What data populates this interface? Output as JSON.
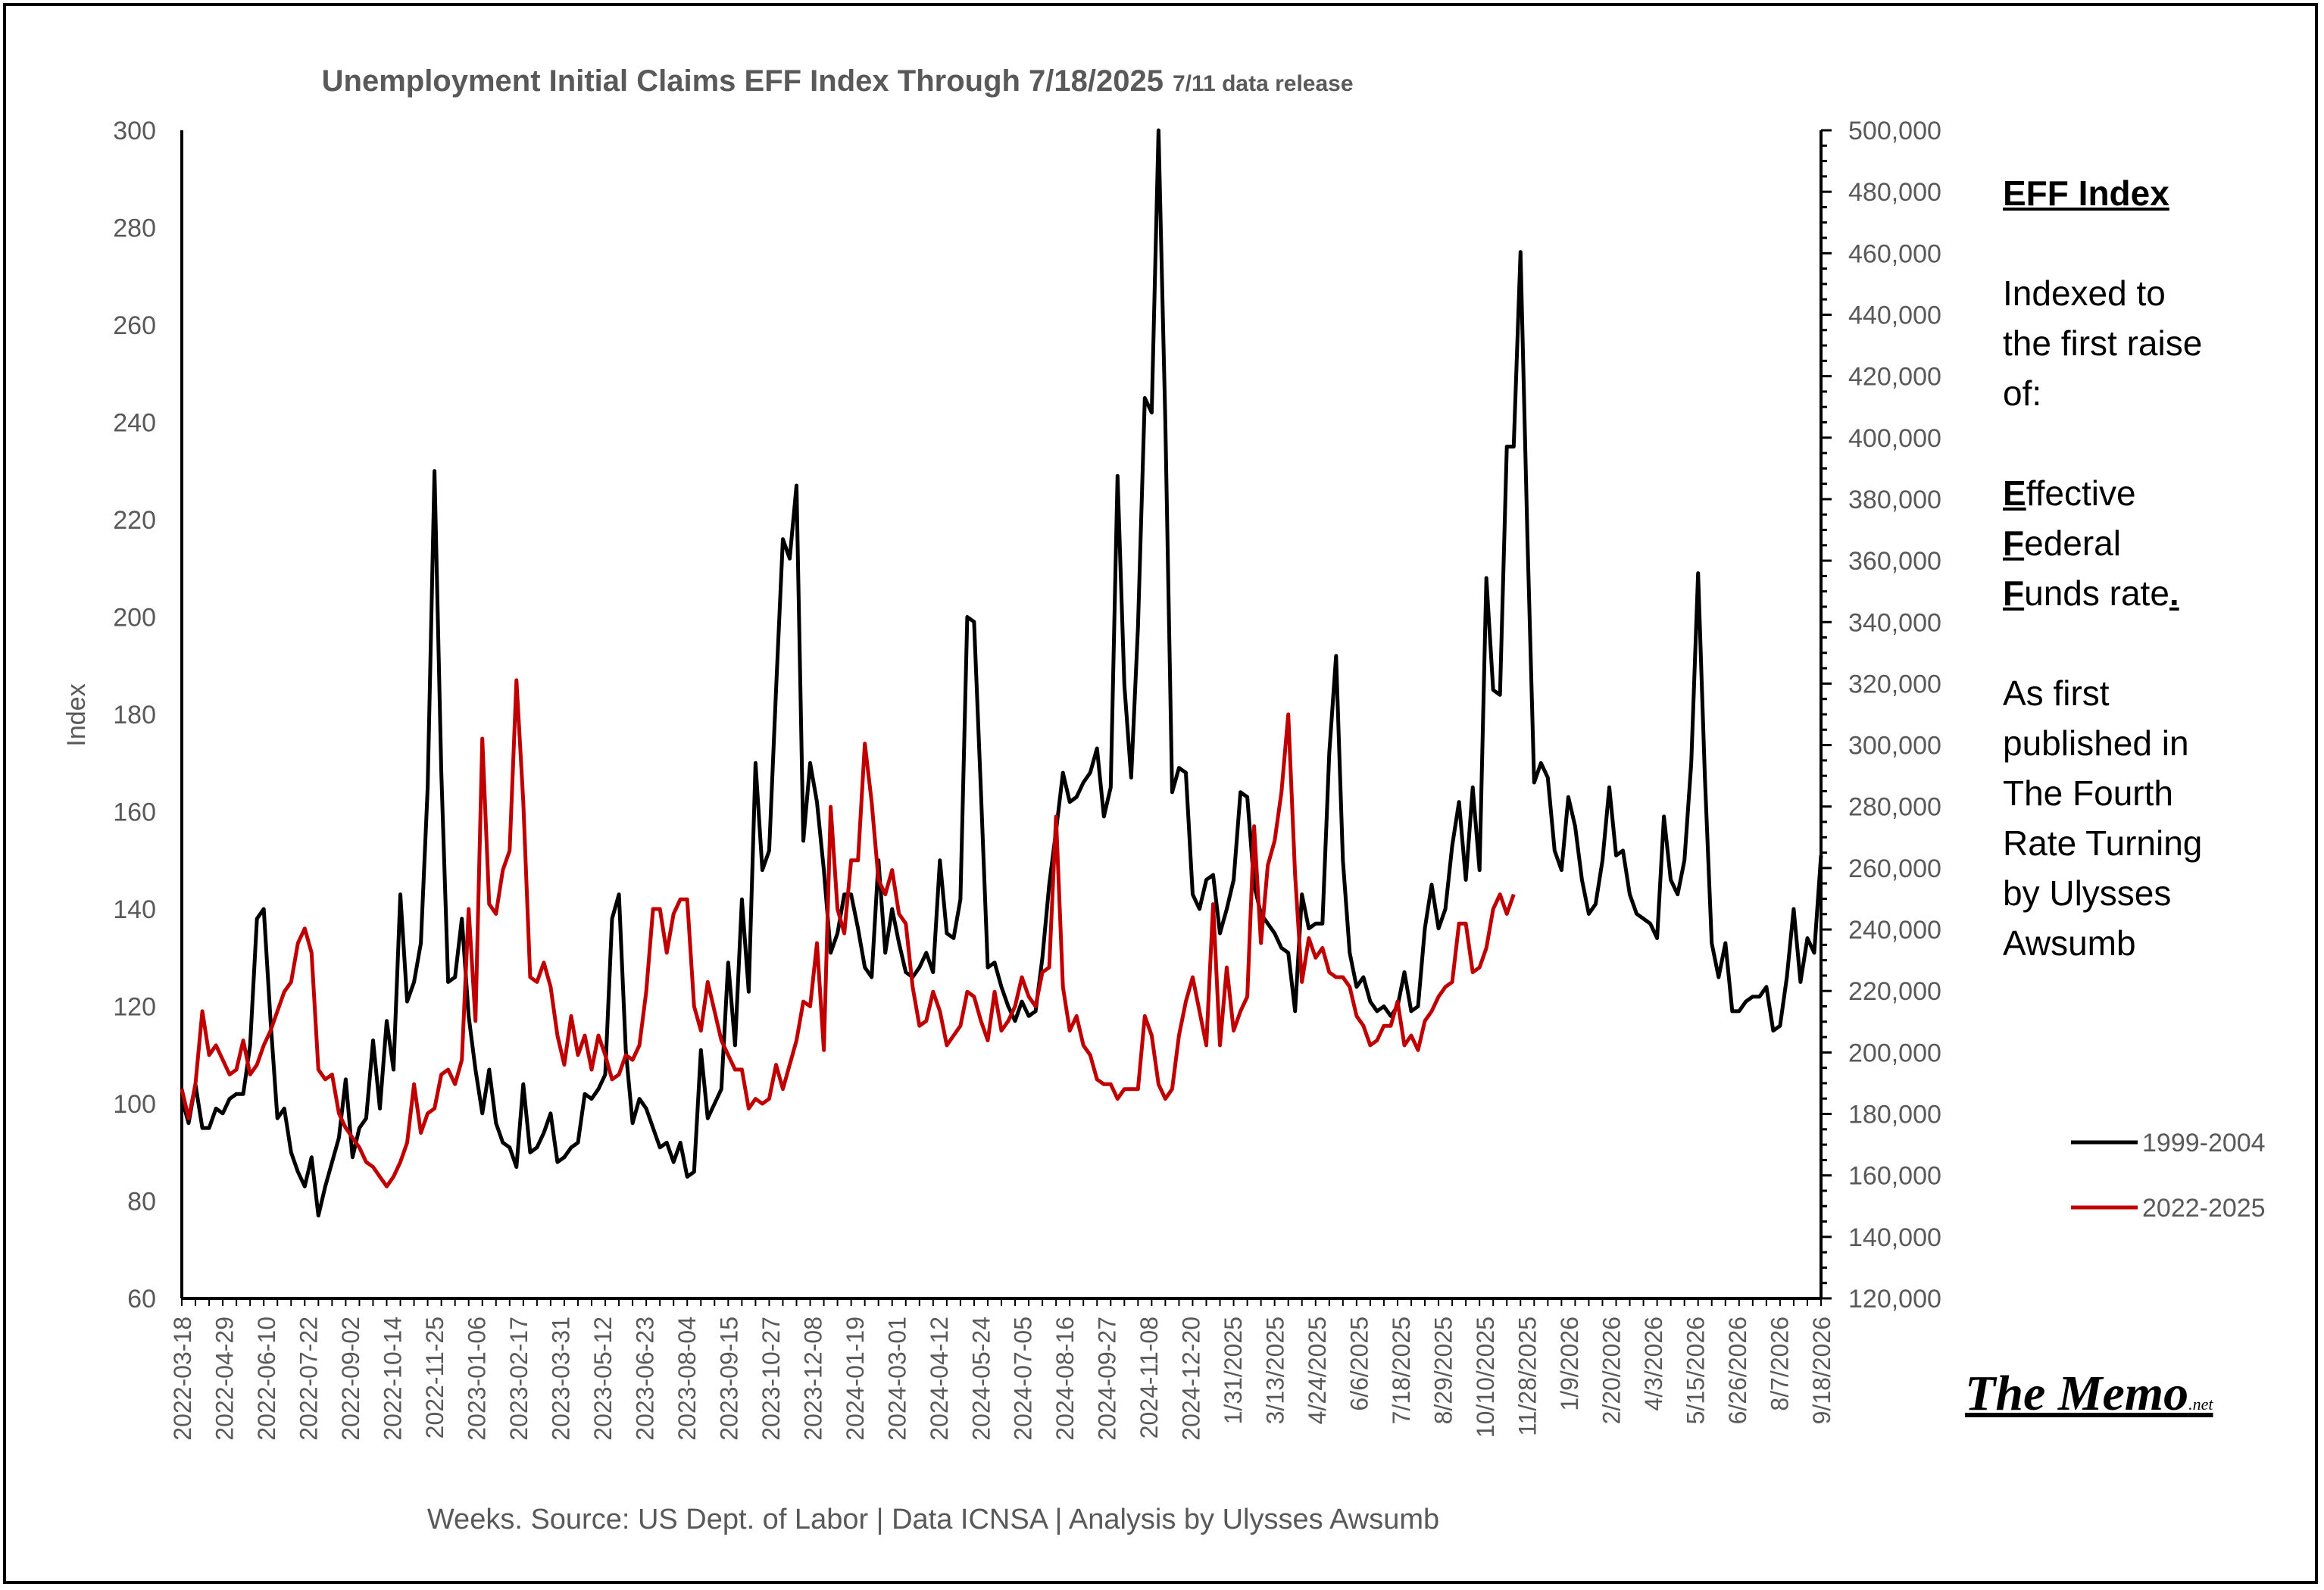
{
  "chart_data": {
    "type": "line",
    "title": "Unemployment Initial Claims EFF Index Through 7/18/2025",
    "title_suffix": "7/11 data release",
    "xlabel": "Weeks. Source: US Dept. of Labor | Data ICNSA | Analysis by Ulysses Awsumb",
    "ylabel": "Index",
    "ylim": [
      60,
      300
    ],
    "y_ticks": [
      "60",
      "80",
      "100",
      "120",
      "140",
      "160",
      "180",
      "200",
      "220",
      "240",
      "260",
      "280",
      "300"
    ],
    "y2_ticks": [
      "120,000",
      "140,000",
      "160,000",
      "180,000",
      "200,000",
      "220,000",
      "240,000",
      "260,000",
      "280,000",
      "300,000",
      "320,000",
      "340,000",
      "360,000",
      "380,000",
      "400,000",
      "420,000",
      "440,000",
      "460,000",
      "480,000",
      "500,000"
    ],
    "x_tick_labels": [
      "2022-03-18",
      "2022-04-29",
      "2022-06-10",
      "2022-07-22",
      "2022-09-02",
      "2022-10-14",
      "2022-11-25",
      "2023-01-06",
      "2023-02-17",
      "2023-03-31",
      "2023-05-12",
      "2023-06-23",
      "2023-08-04",
      "2023-09-15",
      "2023-10-27",
      "2023-12-08",
      "2024-01-19",
      "2024-03-01",
      "2024-04-12",
      "2024-05-24",
      "2024-07-05",
      "2024-08-16",
      "2024-09-27",
      "2024-11-08",
      "2024-12-20",
      "1/31/2025",
      "3/13/2025",
      "4/24/2025",
      "6/6/2025",
      "7/18/2025",
      "8/29/2025",
      "10/10/2025",
      "11/28/2025",
      "1/9/2026",
      "2/20/2026",
      "4/3/2026",
      "5/15/2026",
      "6/26/2026",
      "8/7/2026",
      "9/18/2026"
    ],
    "legend_position": "right",
    "grid": false,
    "series": [
      {
        "name": "1999-2004",
        "color": "#000000",
        "values": [
          101,
          96,
          104,
          95,
          95,
          99,
          98,
          101,
          102,
          102,
          112,
          138,
          140,
          117,
          97,
          99,
          90,
          86,
          83,
          89,
          77,
          83,
          88,
          93,
          105,
          89,
          95,
          97,
          113,
          99,
          117,
          107,
          143,
          121,
          125,
          133,
          165,
          230,
          168,
          125,
          126,
          138,
          118,
          107,
          98,
          107,
          96,
          92,
          91,
          87,
          104,
          90,
          91,
          94,
          98,
          88,
          89,
          91,
          92,
          102,
          101,
          103,
          106,
          138,
          143,
          111,
          96,
          101,
          99,
          95,
          91,
          92,
          88,
          92,
          85,
          86,
          111,
          97,
          100,
          103,
          129,
          112,
          142,
          123,
          170,
          148,
          152,
          185,
          216,
          212,
          227,
          154,
          170,
          162,
          148,
          131,
          135,
          143,
          143,
          136,
          128,
          126,
          150,
          131,
          140,
          133,
          127,
          126,
          128,
          131,
          127,
          150,
          135,
          134,
          142,
          200,
          199,
          164,
          128,
          129,
          124,
          120,
          117,
          121,
          118,
          119,
          130,
          145,
          156,
          168,
          162,
          163,
          166,
          168,
          173,
          159,
          165,
          229,
          186,
          167,
          198,
          245,
          242,
          300,
          240,
          164,
          169,
          168,
          143,
          140,
          146,
          147,
          135,
          140,
          146,
          164,
          163,
          145,
          139,
          137,
          135,
          132,
          131,
          119,
          143,
          136,
          137,
          137,
          172,
          192,
          150,
          131,
          124,
          126,
          121,
          119,
          120,
          118,
          120,
          127,
          119,
          120,
          136,
          145,
          136,
          140,
          153,
          162,
          146,
          165,
          148,
          208,
          185,
          184,
          235,
          235,
          275,
          217,
          166,
          170,
          167,
          152,
          148,
          163,
          157,
          146,
          139,
          141,
          150,
          165,
          151,
          152,
          143,
          139,
          138,
          137,
          134,
          159,
          146,
          143,
          150,
          170,
          209,
          167,
          133,
          126,
          133,
          119,
          119,
          121,
          122,
          122,
          124,
          115,
          116,
          126,
          140,
          125,
          134,
          131,
          151
        ]
      },
      {
        "name": "2022-2025",
        "color": "#c00000",
        "values": [
          103,
          97,
          104,
          119,
          110,
          112,
          109,
          106,
          107,
          113,
          106,
          108,
          112,
          115,
          119,
          123,
          125,
          133,
          136,
          131,
          107,
          105,
          106,
          98,
          95,
          93,
          91,
          88,
          87,
          85,
          83,
          85,
          88,
          92,
          104,
          94,
          98,
          99,
          106,
          107,
          104,
          109,
          140,
          117,
          175,
          141,
          139,
          148,
          152,
          187,
          162,
          126,
          125,
          129,
          124,
          114,
          108,
          118,
          110,
          114,
          107,
          114,
          110,
          105,
          106,
          110,
          109,
          112,
          123,
          140,
          140,
          131,
          139,
          142,
          142,
          120,
          115,
          125,
          119,
          113,
          110,
          107,
          107,
          99,
          101,
          100,
          101,
          108,
          103,
          108,
          113,
          121,
          120,
          133,
          111,
          161,
          140,
          135,
          150,
          150,
          174,
          162,
          146,
          143,
          148,
          139,
          137,
          124,
          116,
          117,
          123,
          119,
          112,
          114,
          116,
          123,
          122,
          117,
          113,
          123,
          115,
          117,
          120,
          126,
          122,
          120,
          127,
          128,
          159,
          124,
          115,
          118,
          112,
          110,
          105,
          104,
          104,
          101,
          103,
          103,
          103,
          118,
          114,
          104,
          101,
          103,
          114,
          121,
          126,
          119,
          112,
          141,
          112,
          128,
          115,
          119,
          122,
          157,
          133,
          149,
          154,
          164,
          180,
          147,
          125,
          134,
          130,
          132,
          127,
          126,
          126,
          124,
          118,
          116,
          112,
          113,
          116,
          116,
          121,
          112,
          114,
          111,
          117,
          119,
          122,
          124,
          125,
          137,
          137,
          127,
          128,
          132,
          140,
          143,
          139,
          143
        ]
      }
    ]
  },
  "side_note": {
    "heading": "EFF Index",
    "line1": "Indexed to",
    "line2": "the first raise",
    "line3": "of:",
    "e_letter": "E",
    "e_rest": "ffective",
    "f1_letter": "F",
    "f1_rest": "ederal",
    "f2_letter": "F",
    "f2_rest": "unds rate",
    "f2_dot": ".",
    "pub1": "As first",
    "pub2": "published in",
    "pub3": "The Fourth",
    "pub4": "Rate Turning",
    "pub5": "by Ulysses",
    "pub6": "Awsumb"
  },
  "logo": {
    "main": "The Memo",
    "suffix": ".net"
  }
}
